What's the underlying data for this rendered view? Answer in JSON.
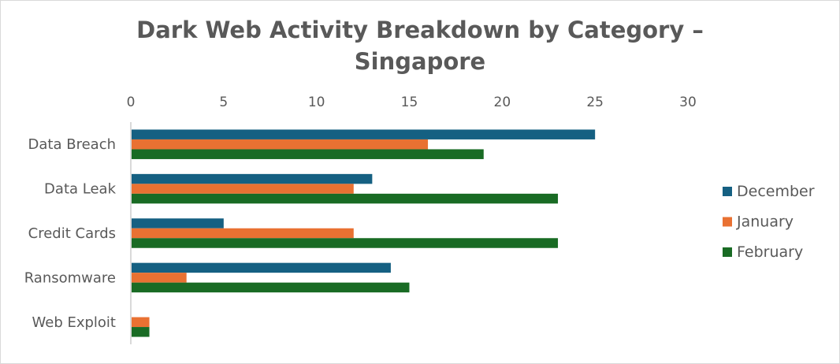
{
  "chart_data": {
    "type": "bar",
    "orientation": "horizontal",
    "title_line1": "Dark Web Activity Breakdown by Category –",
    "title_line2": "Singapore",
    "categories": [
      "Data Breach",
      "Data Leak",
      "Credit Cards",
      "Ransomware",
      "Web Exploit"
    ],
    "series": [
      {
        "name": "December",
        "color": "#156082",
        "values": [
          25,
          13,
          5,
          14,
          0
        ]
      },
      {
        "name": "January",
        "color": "#E97132",
        "values": [
          16,
          12,
          12,
          3,
          1
        ]
      },
      {
        "name": "February",
        "color": "#196B24",
        "values": [
          19,
          23,
          23,
          15,
          1
        ]
      }
    ],
    "xlim": [
      0,
      30
    ],
    "xticks": [
      0,
      5,
      10,
      15,
      20,
      25,
      30
    ],
    "xaxis_position": "top",
    "legend_position": "right",
    "grid": false,
    "xlabel": "",
    "ylabel": ""
  }
}
